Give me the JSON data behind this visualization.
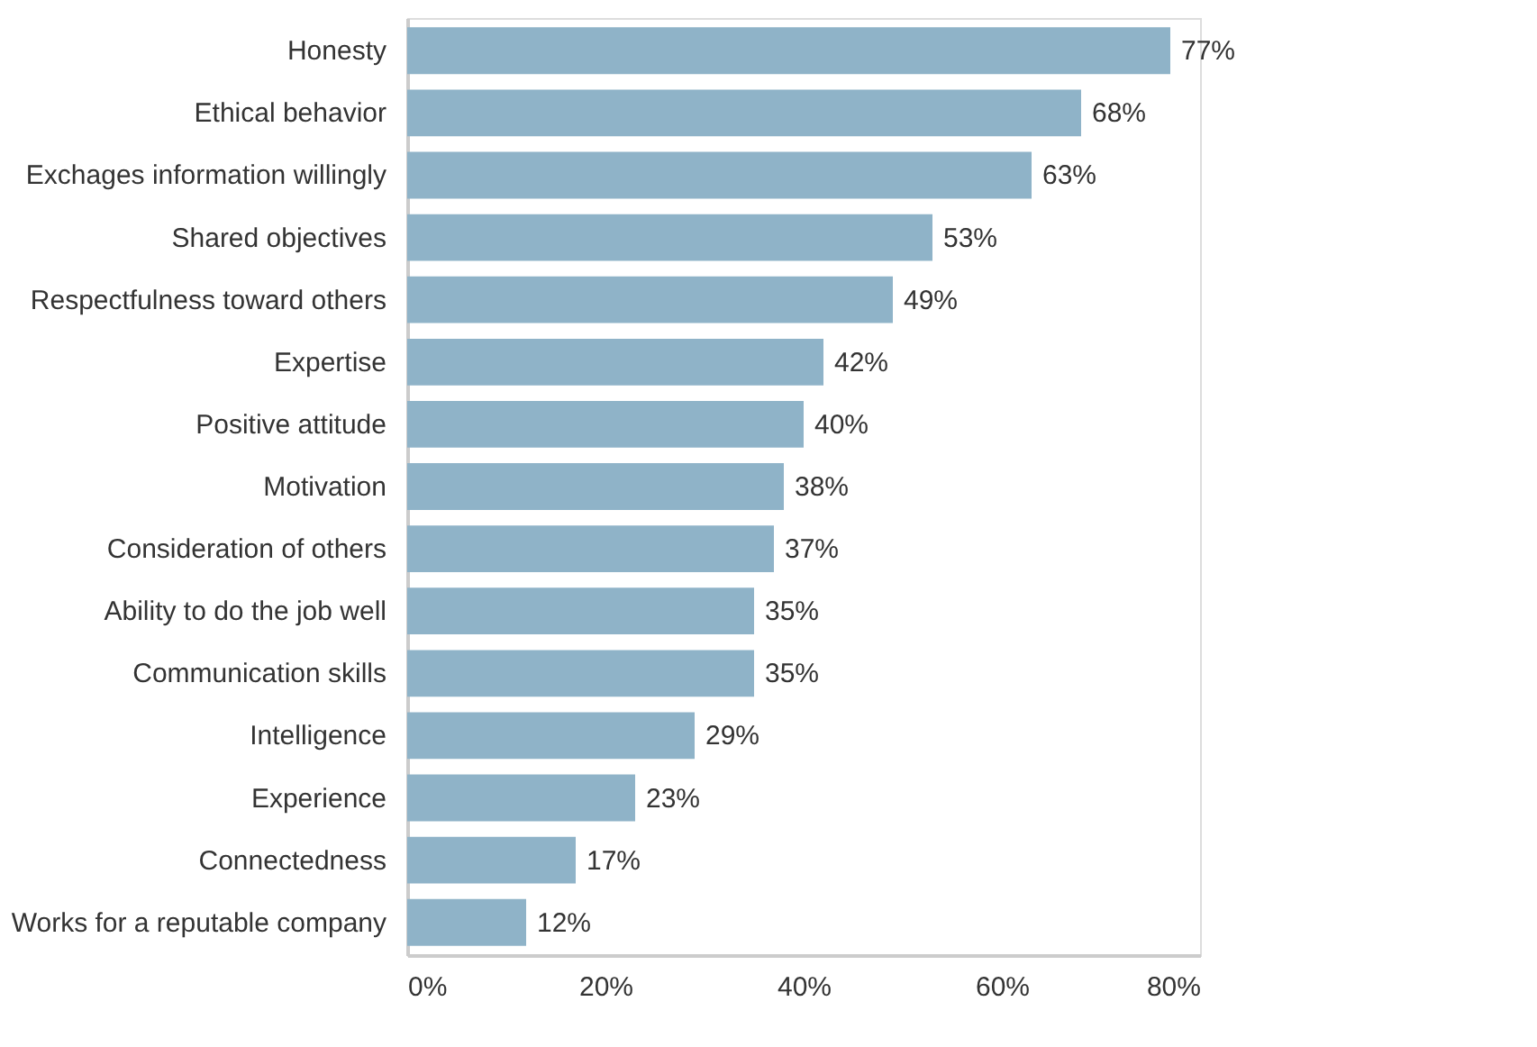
{
  "chart_data": {
    "type": "bar",
    "orientation": "horizontal",
    "categories": [
      "Honesty",
      "Ethical behavior",
      "Exchages information willingly",
      "Shared objectives",
      "Respectfulness toward others",
      "Expertise",
      "Positive attitude",
      "Motivation",
      "Consideration of others",
      "Ability to do the job well",
      "Communication skills",
      "Intelligence",
      "Experience",
      "Connectedness",
      "Works for a reputable company"
    ],
    "values": [
      77,
      68,
      63,
      53,
      49,
      42,
      40,
      38,
      37,
      35,
      35,
      29,
      23,
      17,
      12
    ],
    "value_labels": [
      "77%",
      "68%",
      "63%",
      "53%",
      "49%",
      "42%",
      "40%",
      "38%",
      "37%",
      "35%",
      "35%",
      "29%",
      "23%",
      "17%",
      "12%"
    ],
    "color": "#8fb3c8",
    "xlim": [
      0,
      80
    ],
    "xticks": [
      {
        "value": 0,
        "label": "0%"
      },
      {
        "value": 20,
        "label": "20%"
      },
      {
        "value": 40,
        "label": "40%"
      },
      {
        "value": 60,
        "label": "60%"
      },
      {
        "value": 80,
        "label": "80%"
      }
    ],
    "grid": false
  }
}
